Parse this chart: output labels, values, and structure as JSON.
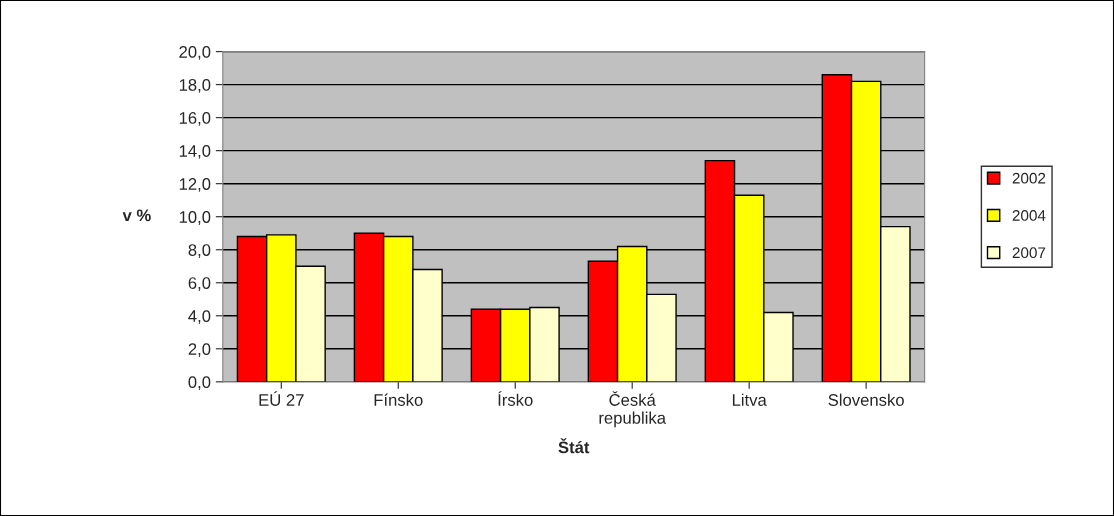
{
  "chart_data": {
    "type": "bar",
    "xlabel": "Štát",
    "ylabel": "v %",
    "categories": [
      "EÚ 27",
      "Fínsko",
      "Írsko",
      "Česká\nrepublika",
      "Litva",
      "Slovensko"
    ],
    "series": [
      {
        "name": "2002",
        "color": "#ff0000",
        "values": [
          8.8,
          9.0,
          4.4,
          7.3,
          13.4,
          18.6
        ]
      },
      {
        "name": "2004",
        "color": "#ffff00",
        "values": [
          8.9,
          8.8,
          4.4,
          8.2,
          11.3,
          18.2
        ]
      },
      {
        "name": "2007",
        "color": "#ffffcc",
        "values": [
          7.0,
          6.8,
          4.5,
          5.3,
          4.2,
          9.4
        ]
      }
    ],
    "ylim": [
      0,
      20
    ],
    "yticks": [
      {
        "value": 0,
        "label": "0,0"
      },
      {
        "value": 2,
        "label": "2,0"
      },
      {
        "value": 4,
        "label": "4,0"
      },
      {
        "value": 6,
        "label": "6,0"
      },
      {
        "value": 8,
        "label": "8,0"
      },
      {
        "value": 10,
        "label": "10,0"
      },
      {
        "value": 12,
        "label": "12,0"
      },
      {
        "value": 14,
        "label": "14,0"
      },
      {
        "value": 16,
        "label": "16,0"
      },
      {
        "value": 18,
        "label": "18,0"
      },
      {
        "value": 20,
        "label": "20,0"
      }
    ],
    "grid": "y",
    "legend": "right"
  }
}
